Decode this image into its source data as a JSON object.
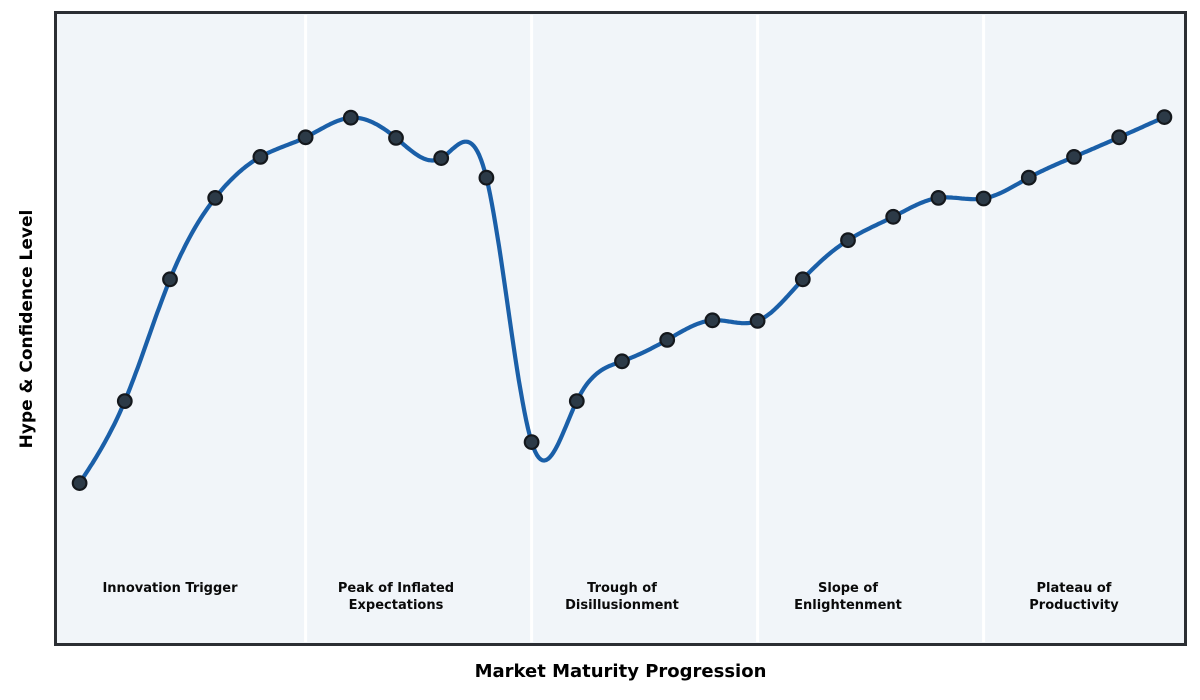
{
  "chart_data": {
    "type": "line",
    "title": "",
    "xlabel": "Market Maturity Progression",
    "ylabel": "Hype & Confidence Level",
    "x": [
      0,
      1,
      2,
      3,
      4,
      5,
      6,
      7,
      8,
      9,
      10,
      11,
      12,
      13,
      14,
      15,
      16,
      17,
      18,
      19,
      20,
      21,
      22,
      23,
      24
    ],
    "values": [
      25.5,
      38.5,
      57.8,
      70.7,
      77.2,
      80.3,
      83.4,
      80.2,
      77.0,
      73.9,
      32.0,
      38.5,
      44.8,
      48.2,
      51.3,
      51.2,
      57.8,
      64.0,
      67.7,
      70.7,
      70.6,
      73.9,
      77.2,
      80.3,
      83.5
    ],
    "xlim": [
      -0.5,
      24.5
    ],
    "ylim": [
      0,
      100
    ],
    "grid": false,
    "legend": "none",
    "curve_style": "smoothed-cubic-spline-through-points",
    "line_color": "#1a5fa8",
    "marker_color": "#2c3a47",
    "marker_edge_color": "#14181d",
    "plot_bg_color": "#f1f5f9",
    "spine_color": "#2b2e33",
    "phase_divider_color": "#ffffff",
    "phase_boundaries_x": [
      5,
      10,
      15,
      20
    ],
    "phases": [
      {
        "label": "Innovation Trigger",
        "center_x": 2
      },
      {
        "label": "Peak of Inflated\nExpectations",
        "center_x": 7
      },
      {
        "label": "Trough of\nDisillusionment",
        "center_x": 12
      },
      {
        "label": "Slope of\nEnlightenment",
        "center_x": 17
      },
      {
        "label": "Plateau of\nProductivity",
        "center_x": 22
      }
    ]
  }
}
